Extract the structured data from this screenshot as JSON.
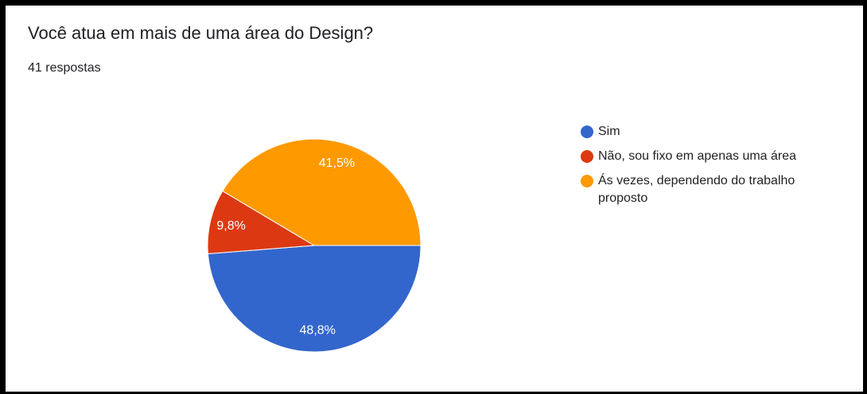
{
  "chart_data": {
    "type": "pie",
    "title": "Você atua em mais de uma área do Design?",
    "subtitle": "41 respostas",
    "categories": [
      "Sim",
      "Não, sou fixo em apenas uma área",
      "Ás vezes, dependendo do trabalho proposto"
    ],
    "values": [
      48.8,
      9.8,
      41.5
    ],
    "value_labels": [
      "48,8%",
      "9,8%",
      "41,5%"
    ],
    "colors": [
      "#3366cc",
      "#dc3912",
      "#ff9900"
    ]
  }
}
